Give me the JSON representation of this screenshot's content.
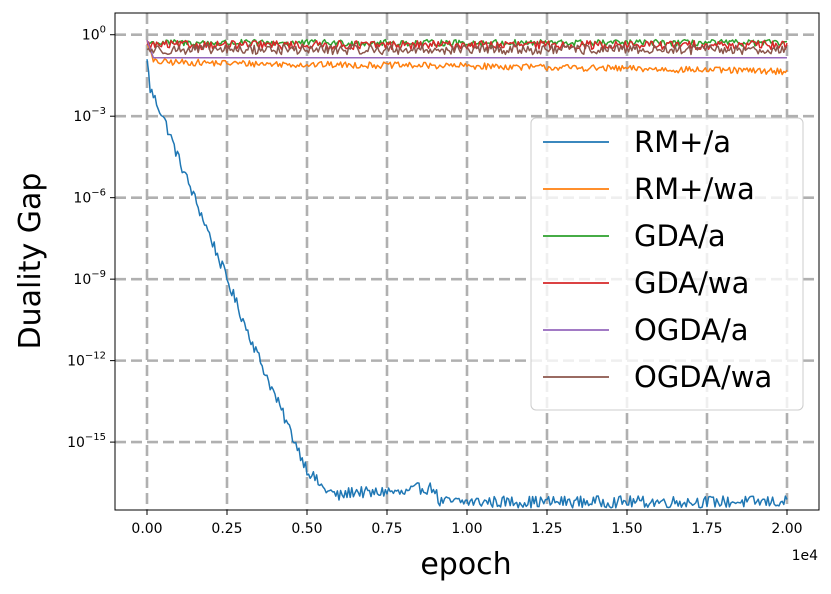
{
  "chart_data": {
    "type": "line",
    "xlabel": "epoch",
    "ylabel": "Duality Gap",
    "x_offset_label": "1e4",
    "xscale": "linear",
    "yscale": "log",
    "xlim": [
      -0.1,
      2.1
    ],
    "ylim_log10": [
      -17.5,
      0.8
    ],
    "grid": true,
    "legend_position": "right",
    "x_ticks": [
      {
        "value": 0.0,
        "label": "0.00"
      },
      {
        "value": 0.25,
        "label": "0.25"
      },
      {
        "value": 0.5,
        "label": "0.50"
      },
      {
        "value": 0.75,
        "label": "0.75"
      },
      {
        "value": 1.0,
        "label": "1.00"
      },
      {
        "value": 1.25,
        "label": "1.25"
      },
      {
        "value": 1.5,
        "label": "1.50"
      },
      {
        "value": 1.75,
        "label": "1.75"
      },
      {
        "value": 2.0,
        "label": "2.00"
      }
    ],
    "y_ticks": [
      {
        "exp": 0,
        "base": "10",
        "sup": "0"
      },
      {
        "exp": -3,
        "base": "10",
        "sup": "−3"
      },
      {
        "exp": -6,
        "base": "10",
        "sup": "−6"
      },
      {
        "exp": -9,
        "base": "10",
        "sup": "−9"
      },
      {
        "exp": -12,
        "base": "10",
        "sup": "−12"
      },
      {
        "exp": -15,
        "base": "10",
        "sup": "−15"
      }
    ],
    "series": [
      {
        "name": "RM+/a",
        "color": "#1f77b4",
        "x": [
          0.0,
          0.01,
          0.05,
          0.1,
          0.2,
          0.3,
          0.4,
          0.5,
          0.55,
          0.6,
          0.65,
          0.7,
          0.75,
          0.8,
          0.85,
          0.9,
          0.91,
          1.0,
          1.25,
          1.5,
          1.75,
          2.0
        ],
        "log10_y": [
          -0.9,
          -2.0,
          -3.0,
          -4.6,
          -7.5,
          -10.5,
          -13.3,
          -16.0,
          -16.7,
          -17.0,
          -16.8,
          -16.9,
          -16.8,
          -16.9,
          -16.7,
          -16.7,
          -17.2,
          -17.2,
          -17.2,
          -17.2,
          -17.2,
          -17.2
        ],
        "noise": 0.22
      },
      {
        "name": "RM+/wa",
        "color": "#ff7f0e",
        "x": [
          0.0,
          0.02,
          0.5,
          1.0,
          1.5,
          2.0
        ],
        "log10_y": [
          -0.2,
          -1.0,
          -1.1,
          -1.15,
          -1.25,
          -1.35
        ],
        "noise": 0.12
      },
      {
        "name": "GDA/a",
        "color": "#2ca02c",
        "x": [
          0.0,
          2.0
        ],
        "log10_y": [
          -0.3,
          -0.3
        ],
        "noise": 0.12
      },
      {
        "name": "GDA/wa",
        "color": "#d62728",
        "x": [
          0.0,
          2.0
        ],
        "log10_y": [
          -0.38,
          -0.38
        ],
        "noise": 0.16
      },
      {
        "name": "OGDA/a",
        "color": "#9467bd",
        "x": [
          0.0,
          0.02,
          2.0
        ],
        "log10_y": [
          -0.2,
          -0.85,
          -0.85
        ],
        "noise": 0.0
      },
      {
        "name": "OGDA/wa",
        "color": "#8c564b",
        "x": [
          0.0,
          2.0
        ],
        "log10_y": [
          -0.55,
          -0.55
        ],
        "noise": 0.18
      }
    ]
  }
}
